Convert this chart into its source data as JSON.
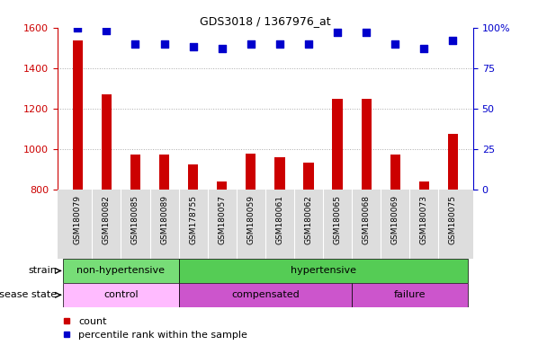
{
  "title": "GDS3018 / 1367976_at",
  "samples": [
    "GSM180079",
    "GSM180082",
    "GSM180085",
    "GSM180089",
    "GSM178755",
    "GSM180057",
    "GSM180059",
    "GSM180061",
    "GSM180062",
    "GSM180065",
    "GSM180068",
    "GSM180069",
    "GSM180073",
    "GSM180075"
  ],
  "counts": [
    1535,
    1270,
    975,
    975,
    925,
    840,
    980,
    960,
    935,
    1250,
    1250,
    975,
    840,
    1075
  ],
  "percentile_ranks": [
    100,
    98,
    90,
    90,
    88,
    87,
    90,
    90,
    90,
    97,
    97,
    90,
    87,
    92
  ],
  "ylim_left": [
    800,
    1600
  ],
  "ylim_right": [
    0,
    100
  ],
  "yticks_left": [
    800,
    1000,
    1200,
    1400,
    1600
  ],
  "yticks_right": [
    0,
    25,
    50,
    75,
    100
  ],
  "bar_color": "#cc0000",
  "dot_color": "#0000cc",
  "strain_groups": [
    {
      "label": "non-hypertensive",
      "start": 0,
      "end": 4,
      "color": "#77dd77"
    },
    {
      "label": "hypertensive",
      "start": 4,
      "end": 14,
      "color": "#55cc55"
    }
  ],
  "disease_configs": [
    {
      "label": "control",
      "start": 0,
      "end": 4,
      "color": "#ffbbff"
    },
    {
      "label": "compensated",
      "start": 4,
      "end": 10,
      "color": "#cc55cc"
    },
    {
      "label": "failure",
      "start": 10,
      "end": 14,
      "color": "#cc55cc"
    }
  ],
  "legend_count_label": "count",
  "legend_pct_label": "percentile rank within the sample",
  "grid_color": "#aaaaaa",
  "tick_color_left": "#cc0000",
  "tick_color_right": "#0000cc",
  "bar_width": 0.35,
  "dot_size": 40,
  "xtick_bg_color": "#dddddd"
}
